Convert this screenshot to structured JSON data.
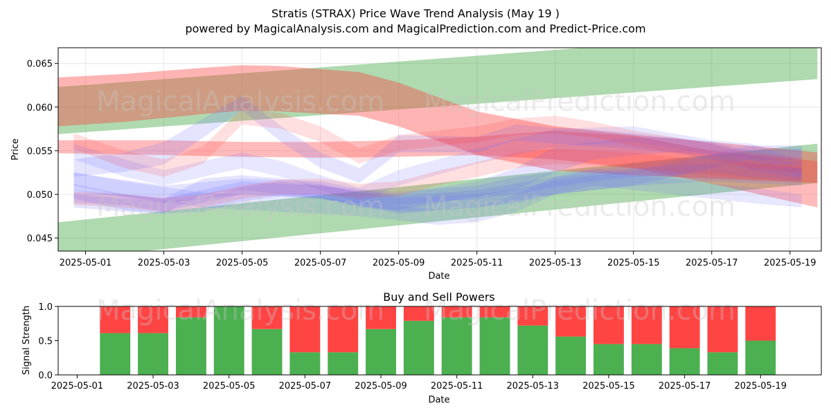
{
  "title": "Stratis (STRAX) Price Wave Trend Analysis (May 19 )",
  "subtitle": "powered by MagicalAnalysis.com and MagicalPrediction.com and Predict-Price.com",
  "watermarks": [
    "MagicalAnalysis.com",
    "MagicalPrediction.com"
  ],
  "colors": {
    "up": "#4caf50",
    "down": "#ff4444",
    "green_band": "#2e9b2e",
    "red_band": "#ff3b3b",
    "blue_band": "#6a6aff"
  },
  "chart_data": [
    {
      "type": "area",
      "title": "",
      "xlabel": "Date",
      "ylabel": "Price",
      "x_range": [
        -0.7,
        18.8
      ],
      "ylim": [
        0.0435,
        0.0668
      ],
      "x_ticks": [
        {
          "x": 0,
          "label": "2025-05-01"
        },
        {
          "x": 2,
          "label": "2025-05-03"
        },
        {
          "x": 4,
          "label": "2025-05-05"
        },
        {
          "x": 6,
          "label": "2025-05-07"
        },
        {
          "x": 8,
          "label": "2025-05-09"
        },
        {
          "x": 10,
          "label": "2025-05-11"
        },
        {
          "x": 12,
          "label": "2025-05-13"
        },
        {
          "x": 14,
          "label": "2025-05-15"
        },
        {
          "x": 16,
          "label": "2025-05-17"
        },
        {
          "x": 18,
          "label": "2025-05-19"
        }
      ],
      "y_ticks": [
        {
          "y": 0.045,
          "label": "0.045"
        },
        {
          "y": 0.05,
          "label": "0.050"
        },
        {
          "y": 0.055,
          "label": "0.055"
        },
        {
          "y": 0.06,
          "label": "0.060"
        },
        {
          "y": 0.065,
          "label": "0.065"
        }
      ],
      "bands": [
        {
          "color": "green",
          "opacity": 0.38,
          "x": [
            -0.7,
            18.7
          ],
          "lower": [
            0.0569,
            0.0632
          ],
          "upper": [
            0.0623,
            0.0688
          ]
        },
        {
          "color": "green",
          "opacity": 0.38,
          "x": [
            -0.7,
            18.7
          ],
          "lower": [
            0.0425,
            0.0513
          ],
          "upper": [
            0.0468,
            0.0558
          ]
        },
        {
          "color": "red",
          "opacity": 0.38,
          "x": [
            -0.7,
            1,
            3,
            4,
            5,
            7,
            8,
            10,
            12,
            14,
            16,
            18.7
          ],
          "lower": [
            0.0578,
            0.0583,
            0.0592,
            0.0596,
            0.0595,
            0.059,
            0.0578,
            0.0545,
            0.0527,
            0.0522,
            0.0518,
            0.0513
          ],
          "upper": [
            0.0634,
            0.0638,
            0.0645,
            0.0648,
            0.0647,
            0.064,
            0.0628,
            0.0595,
            0.0578,
            0.0568,
            0.056,
            0.0548
          ]
        },
        {
          "color": "red",
          "opacity": 0.35,
          "x": [
            -0.7,
            2,
            4,
            6,
            8,
            10,
            12,
            14,
            16,
            18.7
          ],
          "lower": [
            0.0547,
            0.0545,
            0.0543,
            0.0542,
            0.0543,
            0.0545,
            0.054,
            0.053,
            0.0512,
            0.0485
          ],
          "upper": [
            0.0562,
            0.0562,
            0.056,
            0.056,
            0.0562,
            0.0566,
            0.0573,
            0.0567,
            0.055,
            0.0538
          ]
        },
        {
          "color": "blue",
          "opacity": 0.18,
          "x": [
            -0.3,
            1,
            2,
            4,
            5,
            6,
            7,
            8,
            10,
            11,
            12,
            13,
            14,
            15,
            16,
            17,
            18.3
          ],
          "lower": [
            0.052,
            0.0526,
            0.0534,
            0.0596,
            0.056,
            0.053,
            0.0513,
            0.0548,
            0.0548,
            0.0562,
            0.0558,
            0.0555,
            0.0552,
            0.0548,
            0.0545,
            0.0532,
            0.0535
          ],
          "upper": [
            0.054,
            0.0548,
            0.056,
            0.0613,
            0.0578,
            0.0548,
            0.053,
            0.0568,
            0.0566,
            0.058,
            0.0576,
            0.0574,
            0.057,
            0.0565,
            0.056,
            0.055,
            0.0553
          ]
        },
        {
          "color": "blue",
          "opacity": 0.18,
          "x": [
            -0.3,
            2,
            4,
            6,
            8,
            10,
            12,
            14,
            16,
            18.3
          ],
          "lower": [
            0.0505,
            0.049,
            0.05,
            0.0495,
            0.0478,
            0.0485,
            0.05,
            0.051,
            0.0515,
            0.051
          ],
          "upper": [
            0.0525,
            0.051,
            0.0518,
            0.0515,
            0.0498,
            0.0505,
            0.052,
            0.053,
            0.0535,
            0.053
          ]
        },
        {
          "color": "blue",
          "opacity": 0.18,
          "x": [
            -0.3,
            1,
            2,
            3,
            4,
            5,
            6,
            7,
            8,
            10,
            11,
            12,
            13,
            14,
            15,
            16,
            17,
            18.3
          ],
          "lower": [
            0.049,
            0.0488,
            0.048,
            0.049,
            0.05,
            0.0498,
            0.0495,
            0.049,
            0.0488,
            0.0495,
            0.05,
            0.0508,
            0.0515,
            0.052,
            0.0522,
            0.0525,
            0.052,
            0.0515
          ],
          "upper": [
            0.0505,
            0.05,
            0.0495,
            0.0505,
            0.0515,
            0.0512,
            0.051,
            0.0505,
            0.0503,
            0.051,
            0.052,
            0.0525,
            0.0528,
            0.0535,
            0.054,
            0.0545,
            0.0535,
            0.053
          ]
        },
        {
          "color": "blue",
          "opacity": 0.18,
          "x": [
            -0.3,
            1,
            2,
            3,
            4,
            5,
            6,
            7,
            8,
            9,
            10,
            11,
            12,
            13,
            14,
            15,
            16,
            17,
            18.3
          ],
          "lower": [
            0.0495,
            0.0482,
            0.0478,
            0.05,
            0.0505,
            0.05,
            0.0496,
            0.0485,
            0.0482,
            0.049,
            0.0498,
            0.0505,
            0.0525,
            0.054,
            0.0545,
            0.0548,
            0.054,
            0.0528,
            0.0518
          ],
          "upper": [
            0.0512,
            0.05,
            0.0495,
            0.0518,
            0.0522,
            0.0518,
            0.0512,
            0.0502,
            0.05,
            0.0508,
            0.0515,
            0.053,
            0.0555,
            0.056,
            0.0565,
            0.0565,
            0.0558,
            0.0545,
            0.0535
          ]
        },
        {
          "color": "blue",
          "opacity": 0.16,
          "x": [
            -0.3,
            1,
            3,
            5,
            7,
            8,
            9,
            10,
            11,
            12,
            13,
            14,
            15,
            16,
            17,
            18.3
          ],
          "lower": [
            0.051,
            0.0498,
            0.0485,
            0.048,
            0.0475,
            0.047,
            0.0465,
            0.0468,
            0.048,
            0.05,
            0.051,
            0.0505,
            0.05,
            0.0495,
            0.049,
            0.0485
          ],
          "upper": [
            0.0525,
            0.0515,
            0.0502,
            0.0498,
            0.0492,
            0.0487,
            0.0482,
            0.0485,
            0.05,
            0.052,
            0.053,
            0.0522,
            0.0518,
            0.0512,
            0.0508,
            0.05
          ]
        },
        {
          "color": "blue",
          "opacity": 0.18,
          "x": [
            -0.3,
            1,
            2,
            3,
            4,
            5,
            6,
            7,
            8,
            9,
            10,
            11,
            12,
            13,
            14,
            15,
            16,
            17,
            18.3
          ],
          "lower": [
            0.0485,
            0.048,
            0.0478,
            0.048,
            0.0492,
            0.0498,
            0.0495,
            0.0488,
            0.048,
            0.0482,
            0.0485,
            0.049,
            0.05,
            0.0505,
            0.051,
            0.052,
            0.053,
            0.054,
            0.054
          ],
          "upper": [
            0.05,
            0.0495,
            0.0492,
            0.0495,
            0.0508,
            0.0515,
            0.051,
            0.0503,
            0.0496,
            0.0498,
            0.05,
            0.0506,
            0.0516,
            0.0522,
            0.0527,
            0.0536,
            0.0546,
            0.0556,
            0.0556
          ]
        },
        {
          "color": "blue",
          "opacity": 0.16,
          "x": [
            -0.3,
            1,
            2,
            3,
            4,
            5,
            6,
            7,
            8,
            10,
            12,
            14,
            16,
            17,
            18.3
          ],
          "lower": [
            0.054,
            0.052,
            0.051,
            0.052,
            0.053,
            0.052,
            0.0505,
            0.049,
            0.051,
            0.0535,
            0.0555,
            0.056,
            0.0545,
            0.054,
            0.052
          ],
          "upper": [
            0.0558,
            0.054,
            0.0528,
            0.0538,
            0.0548,
            0.0538,
            0.0522,
            0.0508,
            0.0528,
            0.0552,
            0.0575,
            0.0578,
            0.0562,
            0.0558,
            0.0538
          ]
        },
        {
          "color": "red",
          "opacity": 0.16,
          "x": [
            -0.3,
            1,
            2,
            3,
            4,
            5,
            6,
            7,
            8,
            9,
            10,
            11,
            12,
            13,
            14,
            15,
            16,
            17,
            18.3
          ],
          "lower": [
            0.0488,
            0.0485,
            0.048,
            0.0485,
            0.0495,
            0.05,
            0.05,
            0.0495,
            0.0498,
            0.051,
            0.052,
            0.053,
            0.0535,
            0.0533,
            0.053,
            0.0525,
            0.0522,
            0.0518,
            0.0515
          ],
          "upper": [
            0.0503,
            0.05,
            0.0496,
            0.05,
            0.051,
            0.0517,
            0.0518,
            0.0512,
            0.0515,
            0.0527,
            0.0537,
            0.0548,
            0.0552,
            0.055,
            0.0548,
            0.0543,
            0.054,
            0.0536,
            0.0532
          ]
        },
        {
          "color": "red",
          "opacity": 0.16,
          "x": [
            -0.3,
            1,
            2,
            3,
            4,
            5,
            6,
            7,
            8,
            9,
            10,
            11,
            12,
            13,
            14,
            15,
            16,
            17,
            18.3
          ],
          "lower": [
            0.0552,
            0.053,
            0.052,
            0.0535,
            0.058,
            0.0575,
            0.056,
            0.0535,
            0.055,
            0.0555,
            0.056,
            0.0568,
            0.057,
            0.0565,
            0.0555,
            0.0548,
            0.054,
            0.053,
            0.0525
          ],
          "upper": [
            0.057,
            0.055,
            0.054,
            0.0555,
            0.0598,
            0.0593,
            0.0578,
            0.0553,
            0.0568,
            0.0573,
            0.0578,
            0.0587,
            0.059,
            0.0583,
            0.0573,
            0.0566,
            0.0558,
            0.0548,
            0.0542
          ]
        }
      ]
    },
    {
      "type": "bar",
      "title": "Buy and Sell Powers",
      "xlabel": "Date",
      "ylabel": "Signal Strength",
      "x_range": [
        -0.5,
        19.6
      ],
      "ylim": [
        0,
        1
      ],
      "categories": [
        "2025-05-02",
        "2025-05-03",
        "2025-05-04",
        "2025-05-05",
        "2025-05-06",
        "2025-05-07",
        "2025-05-08",
        "2025-05-09",
        "2025-05-10",
        "2025-05-11",
        "2025-05-12",
        "2025-05-13",
        "2025-05-14",
        "2025-05-15",
        "2025-05-16",
        "2025-05-17",
        "2025-05-18",
        "2025-05-19"
      ],
      "positions": [
        1,
        2,
        3,
        4,
        5,
        6,
        7,
        8,
        9,
        10,
        11,
        12,
        13,
        14,
        15,
        16,
        17,
        18
      ],
      "series": [
        {
          "name": "Buy",
          "color": "#4caf50",
          "values": [
            0.61,
            0.61,
            0.84,
            1.0,
            0.67,
            0.33,
            0.33,
            0.67,
            0.79,
            0.84,
            0.84,
            0.72,
            0.56,
            0.45,
            0.45,
            0.39,
            0.33,
            0.5
          ]
        },
        {
          "name": "Sell",
          "color": "#ff4444",
          "values": [
            0.39,
            0.39,
            0.16,
            0.0,
            0.33,
            0.67,
            0.67,
            0.33,
            0.21,
            0.16,
            0.16,
            0.28,
            0.44,
            0.55,
            0.55,
            0.61,
            0.67,
            0.5
          ]
        }
      ],
      "x_ticks": [
        {
          "x": 0,
          "label": "2025-05-01"
        },
        {
          "x": 2,
          "label": "2025-05-03"
        },
        {
          "x": 4,
          "label": "2025-05-05"
        },
        {
          "x": 6,
          "label": "2025-05-07"
        },
        {
          "x": 8,
          "label": "2025-05-09"
        },
        {
          "x": 10,
          "label": "2025-05-11"
        },
        {
          "x": 12,
          "label": "2025-05-13"
        },
        {
          "x": 14,
          "label": "2025-05-15"
        },
        {
          "x": 16,
          "label": "2025-05-17"
        },
        {
          "x": 18,
          "label": "2025-05-19"
        }
      ],
      "y_ticks": [
        {
          "y": 0.0,
          "label": "0.0"
        },
        {
          "y": 0.5,
          "label": "0.5"
        },
        {
          "y": 1.0,
          "label": "1.0"
        }
      ]
    }
  ]
}
